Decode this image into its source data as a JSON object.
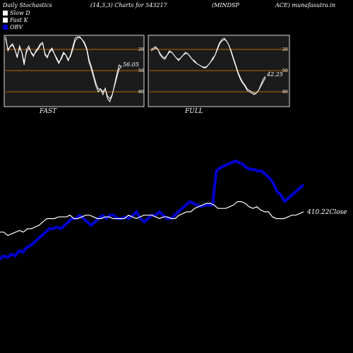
{
  "header": {
    "left": "Daily Stochastics",
    "params": "(14,3,3) Charts for 543217",
    "symbol": "(MINDSP",
    "right": "ACE) munafasutra.in"
  },
  "legend": [
    {
      "label": "Slow  D",
      "color": "#ffffff"
    },
    {
      "label": "Fast K",
      "color": "#ffffff"
    },
    {
      "label": "OBV",
      "color": "#0000cc"
    }
  ],
  "colors": {
    "obv": "#0000cc",
    "close": "#ffffff",
    "ref_lines": "#b86a00",
    "panel_bg": "#1b1b1b"
  },
  "chart_data": [
    {
      "type": "line",
      "title": "FAST",
      "ylim": [
        0,
        100
      ],
      "reference_lines": [
        20,
        50,
        80
      ],
      "tick_labels": [
        "80",
        "50",
        "20"
      ],
      "last_value_label": "56.05",
      "series": [
        {
          "values": [
            98,
            78,
            85,
            88,
            80,
            68,
            85,
            75,
            58,
            80,
            85,
            75,
            70,
            78,
            82,
            88,
            90,
            72,
            68,
            78,
            82,
            74,
            66,
            60,
            68,
            76,
            72,
            64,
            72,
            84,
            96,
            98,
            98,
            94,
            88,
            80,
            62,
            52,
            40,
            28,
            20,
            24,
            16,
            25,
            10,
            6,
            15,
            30,
            45,
            58,
            56
          ]
        },
        {
          "values": [
            95,
            80,
            84,
            86,
            80,
            70,
            82,
            76,
            62,
            76,
            82,
            76,
            72,
            76,
            80,
            86,
            88,
            74,
            70,
            76,
            80,
            74,
            68,
            62,
            66,
            74,
            72,
            66,
            70,
            80,
            92,
            96,
            97,
            94,
            90,
            82,
            66,
            56,
            44,
            32,
            24,
            24,
            20,
            24,
            14,
            10,
            16,
            28,
            40,
            52,
            56
          ]
        }
      ]
    },
    {
      "type": "line",
      "title": "FULL",
      "ylim": [
        0,
        100
      ],
      "reference_lines": [
        20,
        50,
        80
      ],
      "tick_labels": [
        "80",
        "50",
        "20"
      ],
      "last_value_label": "42.25",
      "series": [
        {
          "values": [
            80,
            82,
            84,
            80,
            72,
            68,
            66,
            72,
            78,
            76,
            72,
            68,
            64,
            68,
            72,
            76,
            74,
            70,
            66,
            62,
            60,
            58,
            56,
            54,
            54,
            58,
            62,
            68,
            72,
            82,
            90,
            94,
            96,
            92,
            86,
            76,
            66,
            56,
            46,
            38,
            32,
            28,
            22,
            20,
            18,
            16,
            18,
            22,
            30,
            38,
            42
          ]
        },
        {
          "values": [
            78,
            80,
            82,
            80,
            74,
            70,
            68,
            72,
            76,
            76,
            72,
            68,
            66,
            68,
            72,
            74,
            74,
            70,
            66,
            64,
            60,
            58,
            56,
            55,
            55,
            58,
            62,
            66,
            72,
            80,
            88,
            92,
            94,
            92,
            86,
            78,
            68,
            58,
            48,
            40,
            34,
            30,
            24,
            22,
            20,
            18,
            18,
            22,
            28,
            34,
            40
          ]
        }
      ]
    },
    {
      "type": "line",
      "ylim": [
        0,
        100
      ],
      "last_value_label": "410.22Close",
      "series": [
        {
          "values": [
            42,
            44,
            43,
            45,
            44,
            47,
            46,
            49,
            50,
            52,
            54,
            56,
            58,
            60,
            60,
            61,
            60,
            62,
            64,
            66,
            66,
            68,
            66,
            64,
            62,
            64,
            66,
            68,
            66,
            68,
            68,
            66,
            66,
            67,
            66,
            68,
            70,
            66,
            64,
            66,
            68,
            68,
            70,
            68,
            66,
            66,
            68,
            70,
            72,
            74,
            76,
            75,
            74,
            73,
            74,
            74,
            74,
            94,
            96,
            97,
            98,
            99,
            100,
            99,
            98,
            96,
            95,
            95,
            94,
            94,
            92,
            90,
            87,
            82,
            80,
            76,
            78,
            80,
            82,
            84,
            86
          ]
        },
        {
          "values": [
            58,
            58,
            56,
            57,
            58,
            59,
            58,
            60,
            60,
            61,
            62,
            64,
            66,
            66,
            66,
            67,
            67,
            67,
            68,
            66,
            66,
            67,
            68,
            68,
            67,
            66,
            66,
            67,
            67,
            66,
            66,
            66,
            66,
            68,
            67,
            66,
            67,
            68,
            68,
            68,
            67,
            66,
            67,
            67,
            66,
            66,
            68,
            69,
            70,
            70,
            72,
            73,
            74,
            75,
            75,
            74,
            72,
            72,
            72,
            73,
            74,
            76,
            76,
            75,
            73,
            72,
            73,
            71,
            70,
            70,
            67,
            66,
            66,
            66,
            67,
            68,
            68,
            69,
            70
          ]
        }
      ]
    }
  ]
}
